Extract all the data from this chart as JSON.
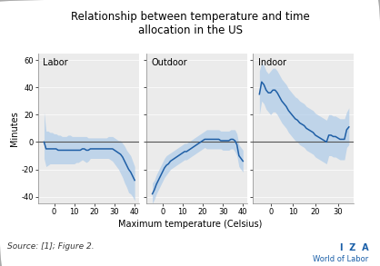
{
  "title": "Relationship between temperature and time\nallocation in the US",
  "panels": [
    "Labor",
    "Outdoor",
    "Indoor"
  ],
  "xlabel": "Maximum temperature (Celsius)",
  "ylabel": "Minutes",
  "source_text": "Source: [1]; Figure 2.",
  "ylim": [
    -45,
    65
  ],
  "yticks": [
    -40,
    -20,
    0,
    20,
    40,
    60
  ],
  "line_color": "#1f5fa6",
  "fill_color": "#a8c8e8",
  "zero_line_color": "#555555",
  "background_color": "#ebebeb",
  "iza_color": "#1a5fa8",
  "labor_x": [
    -5,
    -4,
    -3,
    -2,
    -1,
    0,
    1,
    2,
    3,
    4,
    5,
    6,
    7,
    8,
    9,
    10,
    11,
    12,
    13,
    14,
    15,
    16,
    17,
    18,
    19,
    20,
    21,
    22,
    23,
    24,
    25,
    26,
    27,
    28,
    29,
    30,
    31,
    32,
    33,
    34,
    35,
    36,
    37,
    38,
    39,
    40
  ],
  "labor_y": [
    0,
    -5,
    -5,
    -5,
    -5,
    -5,
    -5,
    -6,
    -6,
    -6,
    -6,
    -6,
    -6,
    -6,
    -6,
    -6,
    -6,
    -6,
    -6,
    -5,
    -5,
    -6,
    -6,
    -5,
    -5,
    -5,
    -5,
    -5,
    -5,
    -5,
    -5,
    -5,
    -5,
    -5,
    -5,
    -6,
    -7,
    -8,
    -9,
    -11,
    -14,
    -17,
    -20,
    -22,
    -25,
    -28
  ],
  "labor_lower": [
    -12,
    -18,
    -17,
    -16,
    -16,
    -16,
    -16,
    -16,
    -16,
    -16,
    -16,
    -16,
    -16,
    -16,
    -16,
    -16,
    -15,
    -15,
    -14,
    -13,
    -14,
    -15,
    -14,
    -12,
    -12,
    -12,
    -12,
    -12,
    -12,
    -12,
    -12,
    -12,
    -12,
    -13,
    -14,
    -16,
    -18,
    -20,
    -23,
    -26,
    -30,
    -33,
    -37,
    -38,
    -40,
    -43
  ],
  "labor_upper": [
    22,
    8,
    8,
    7,
    7,
    6,
    6,
    5,
    5,
    4,
    4,
    4,
    5,
    5,
    4,
    4,
    4,
    4,
    4,
    4,
    4,
    4,
    3,
    3,
    3,
    3,
    3,
    3,
    3,
    3,
    3,
    3,
    4,
    4,
    4,
    3,
    2,
    1,
    1,
    -1,
    -3,
    -6,
    -8,
    -10,
    -14,
    -18
  ],
  "outdoor_x": [
    -5,
    -4,
    -3,
    -2,
    -1,
    0,
    1,
    2,
    3,
    4,
    5,
    6,
    7,
    8,
    9,
    10,
    11,
    12,
    13,
    14,
    15,
    16,
    17,
    18,
    19,
    20,
    21,
    22,
    23,
    24,
    25,
    26,
    27,
    28,
    29,
    30,
    31,
    32,
    33,
    34,
    35,
    36,
    37,
    38,
    39,
    40
  ],
  "outdoor_y": [
    -38,
    -35,
    -31,
    -28,
    -25,
    -22,
    -19,
    -17,
    -16,
    -14,
    -13,
    -12,
    -11,
    -10,
    -9,
    -8,
    -7,
    -7,
    -6,
    -5,
    -4,
    -3,
    -2,
    -1,
    0,
    1,
    2,
    2,
    2,
    2,
    2,
    2,
    2,
    2,
    1,
    1,
    1,
    1,
    1,
    2,
    2,
    1,
    -2,
    -10,
    -12,
    -14
  ],
  "outdoor_lower": [
    -45,
    -42,
    -38,
    -35,
    -32,
    -29,
    -26,
    -24,
    -22,
    -20,
    -19,
    -18,
    -17,
    -16,
    -15,
    -14,
    -13,
    -13,
    -12,
    -11,
    -10,
    -9,
    -8,
    -7,
    -6,
    -5,
    -4,
    -5,
    -5,
    -5,
    -5,
    -5,
    -5,
    -5,
    -5,
    -6,
    -6,
    -6,
    -6,
    -5,
    -5,
    -7,
    -10,
    -18,
    -20,
    -22
  ],
  "outdoor_upper": [
    -30,
    -28,
    -24,
    -21,
    -18,
    -15,
    -12,
    -10,
    -9,
    -8,
    -7,
    -6,
    -5,
    -4,
    -3,
    -2,
    -1,
    -1,
    0,
    1,
    2,
    3,
    4,
    5,
    6,
    7,
    8,
    9,
    9,
    9,
    9,
    9,
    9,
    9,
    8,
    8,
    8,
    8,
    8,
    9,
    9,
    9,
    6,
    -2,
    -4,
    -6
  ],
  "indoor_x": [
    -5,
    -4,
    -3,
    -2,
    -1,
    0,
    1,
    2,
    3,
    4,
    5,
    6,
    7,
    8,
    9,
    10,
    11,
    12,
    13,
    14,
    15,
    16,
    17,
    18,
    19,
    20,
    21,
    22,
    23,
    24,
    25,
    26,
    27,
    28,
    29,
    30,
    31,
    32,
    33,
    34,
    35
  ],
  "indoor_y": [
    35,
    44,
    42,
    38,
    36,
    36,
    38,
    38,
    36,
    33,
    30,
    28,
    26,
    23,
    21,
    19,
    17,
    16,
    14,
    13,
    12,
    10,
    9,
    8,
    7,
    5,
    4,
    3,
    2,
    1,
    0,
    5,
    5,
    4,
    4,
    3,
    2,
    2,
    2,
    9,
    11
  ],
  "indoor_lower": [
    20,
    30,
    28,
    24,
    22,
    20,
    22,
    22,
    20,
    17,
    14,
    12,
    10,
    7,
    5,
    3,
    1,
    0,
    -2,
    -3,
    -4,
    -6,
    -7,
    -8,
    -9,
    -11,
    -12,
    -13,
    -14,
    -15,
    -16,
    -10,
    -10,
    -11,
    -11,
    -12,
    -13,
    -13,
    -13,
    -4,
    -2
  ],
  "indoor_upper": [
    52,
    58,
    56,
    52,
    50,
    52,
    54,
    54,
    52,
    49,
    46,
    44,
    42,
    39,
    37,
    35,
    33,
    32,
    30,
    29,
    28,
    26,
    25,
    24,
    23,
    21,
    20,
    19,
    18,
    17,
    16,
    20,
    20,
    19,
    19,
    18,
    17,
    17,
    17,
    22,
    25
  ]
}
